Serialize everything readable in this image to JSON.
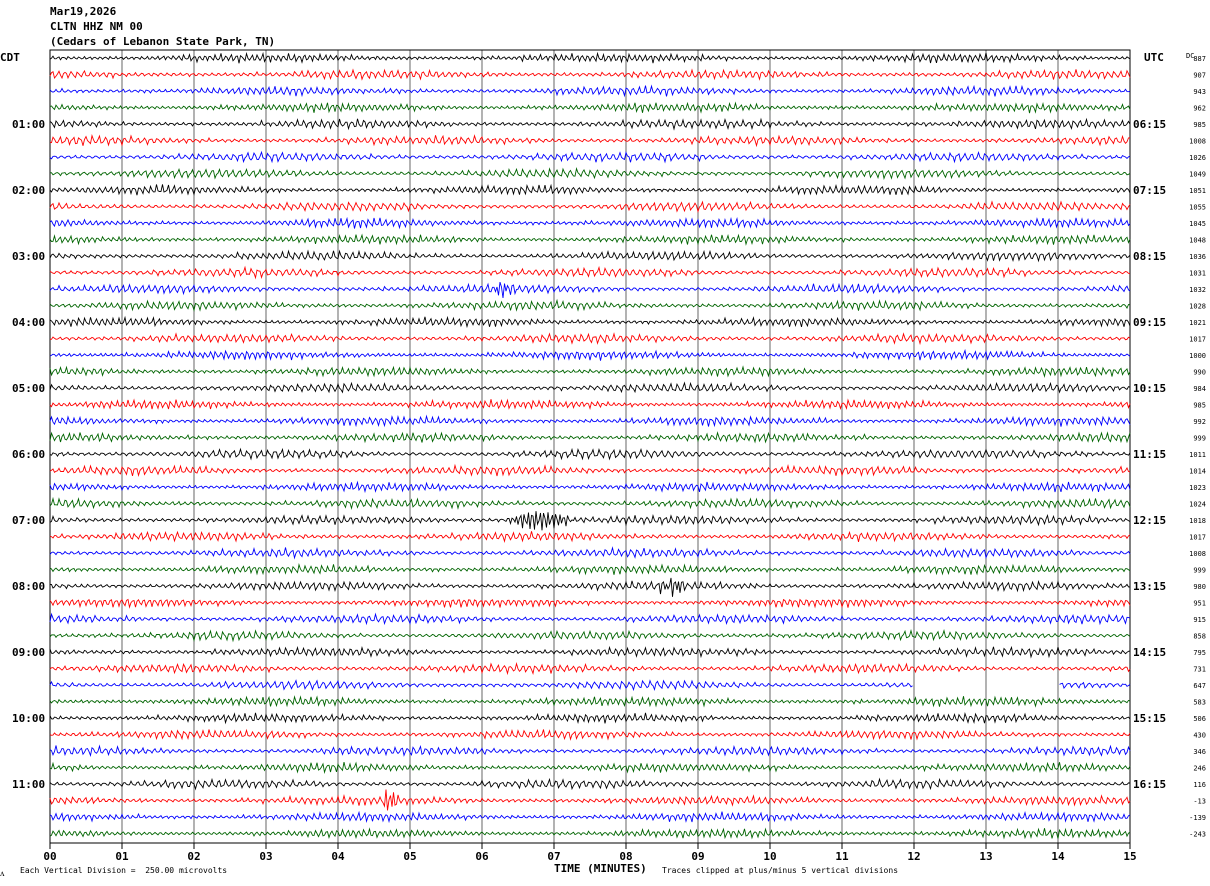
{
  "header": {
    "date": "Mar19,2026",
    "station": "CLTN HHZ NM 00",
    "location": "(Cedars of Lebanon State Park, TN)"
  },
  "chart_data": {
    "type": "line",
    "title": "Mar19,2026  CLTN HHZ NM 00  (Cedars of Lebanon State Park, TN)",
    "xlabel": "TIME (MINUTES)",
    "x_range": [
      0,
      15
    ],
    "x_ticks": [
      "00",
      "01",
      "02",
      "03",
      "04",
      "05",
      "06",
      "07",
      "08",
      "09",
      "10",
      "11",
      "12",
      "13",
      "14",
      "15"
    ],
    "left_label": "CDT",
    "right_label": "UTC",
    "dc_label": "DC",
    "cdt_hour_labels": [
      "01:00",
      "02:00",
      "03:00",
      "04:00",
      "05:00",
      "06:00",
      "07:00",
      "08:00",
      "09:00",
      "10:00",
      "11:00"
    ],
    "utc_hour_labels": [
      "06:15",
      "07:15",
      "08:15",
      "09:15",
      "10:15",
      "11:15",
      "12:15",
      "13:15",
      "14:15",
      "15:15",
      "16:15"
    ],
    "trace_colors": [
      "#000000",
      "#ff0000",
      "#0000ff",
      "#006400"
    ],
    "dc_offsets": [
      "887",
      "907",
      "943",
      "962",
      "985",
      "1008",
      "1026",
      "1049",
      "1051",
      "1055",
      "1045",
      "1048",
      "1036",
      "1031",
      "1032",
      "1028",
      "1021",
      "1017",
      "1000",
      "990",
      "984",
      "985",
      "992",
      "999",
      "1011",
      "1014",
      "1023",
      "1024",
      "1018",
      "1017",
      "1008",
      "999",
      "980",
      "951",
      "915",
      "858",
      "795",
      "731",
      "647",
      "583",
      "506",
      "430",
      "346",
      "246",
      "116",
      "-13",
      "-139",
      "-243"
    ],
    "events": [
      {
        "trace": 14,
        "start_min": 6.1,
        "end_min": 6.5,
        "amplitude": 1.6
      },
      {
        "trace": 28,
        "start_min": 6.3,
        "end_min": 7.3,
        "amplitude": 2.4
      },
      {
        "trace": 32,
        "start_min": 8.4,
        "end_min": 8.9,
        "amplitude": 1.8
      },
      {
        "trace": 45,
        "start_min": 4.6,
        "end_min": 4.85,
        "amplitude": 3.0
      }
    ],
    "gaps": [
      {
        "trace": 38,
        "start_min": 12.0,
        "end_min": 14.0
      }
    ],
    "scale_note": "Each Vertical Division =  250.00 microvolts",
    "clip_note": "Traces clipped at plus/minus 5 vertical divisions"
  }
}
